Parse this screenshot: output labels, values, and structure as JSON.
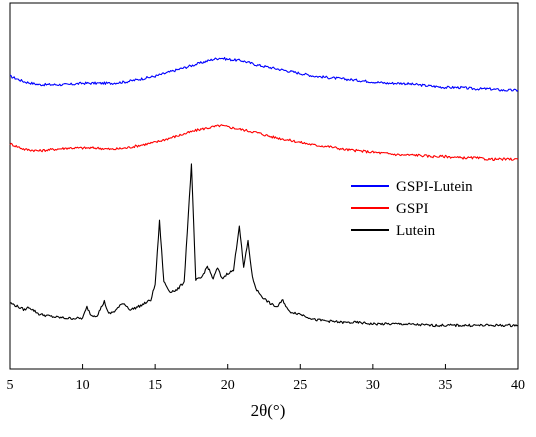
{
  "chart_data": {
    "type": "line",
    "title": "",
    "xlabel": "2θ(°)",
    "ylabel": "",
    "xlim": [
      5,
      40
    ],
    "xticks": [
      "5",
      "10",
      "15",
      "20",
      "25",
      "30",
      "35",
      "40"
    ],
    "y_ticks_shown": false,
    "grid": false,
    "legend_position": "center-right",
    "series": [
      {
        "name": "GSPI-Lutein",
        "color": "#0000ff",
        "x": [
          5,
          6,
          7,
          8,
          9,
          10,
          11,
          12,
          13,
          14,
          15,
          16,
          17,
          18,
          19,
          19.5,
          20,
          21,
          22,
          23,
          24,
          25,
          26,
          27,
          28,
          29,
          30,
          31,
          32,
          33,
          34,
          35,
          36,
          37,
          38,
          39,
          40
        ],
        "y": [
          2.08,
          2.04,
          2.02,
          2.02,
          2.02,
          2.03,
          2.03,
          2.03,
          2.04,
          2.06,
          2.08,
          2.11,
          2.14,
          2.17,
          2.2,
          2.21,
          2.2,
          2.19,
          2.16,
          2.14,
          2.12,
          2.1,
          2.08,
          2.07,
          2.06,
          2.05,
          2.04,
          2.03,
          2.03,
          2.02,
          2.01,
          2.0,
          2.0,
          1.99,
          1.99,
          1.98,
          1.98
        ]
      },
      {
        "name": "GSPI",
        "color": "#ff0000",
        "x": [
          5,
          6,
          7,
          8,
          9,
          10,
          11,
          12,
          13,
          14,
          15,
          16,
          17,
          18,
          19,
          19.5,
          20,
          21,
          22,
          23,
          24,
          25,
          26,
          27,
          28,
          29,
          30,
          31,
          32,
          33,
          34,
          35,
          36,
          37,
          38,
          39,
          40
        ],
        "y": [
          1.6,
          1.56,
          1.55,
          1.56,
          1.57,
          1.57,
          1.57,
          1.56,
          1.57,
          1.59,
          1.61,
          1.64,
          1.67,
          1.7,
          1.72,
          1.73,
          1.72,
          1.7,
          1.68,
          1.65,
          1.63,
          1.61,
          1.59,
          1.58,
          1.56,
          1.55,
          1.54,
          1.53,
          1.52,
          1.52,
          1.51,
          1.51,
          1.5,
          1.5,
          1.49,
          1.49,
          1.49
        ]
      },
      {
        "name": "Lutein",
        "color": "#000000",
        "x": [
          5,
          6,
          6.3,
          7,
          8,
          9,
          10,
          10.3,
          10.6,
          11,
          11.5,
          11.8,
          12.2,
          12.8,
          13.3,
          14,
          14.7,
          15.0,
          15.3,
          15.6,
          16.0,
          16.5,
          17.0,
          17.5,
          17.8,
          18.2,
          18.6,
          19.0,
          19.3,
          19.6,
          20.0,
          20.4,
          20.8,
          21.1,
          21.4,
          21.7,
          22.0,
          22.5,
          23.0,
          23.4,
          23.8,
          24.2,
          25.0,
          25.5,
          26,
          27,
          28,
          29,
          30,
          32,
          34,
          36,
          38,
          40
        ],
        "y": [
          0.47,
          0.42,
          0.44,
          0.39,
          0.37,
          0.36,
          0.36,
          0.44,
          0.38,
          0.38,
          0.48,
          0.39,
          0.41,
          0.47,
          0.42,
          0.45,
          0.49,
          0.6,
          1.05,
          0.62,
          0.55,
          0.56,
          0.62,
          1.45,
          0.63,
          0.65,
          0.73,
          0.64,
          0.72,
          0.64,
          0.68,
          0.7,
          1.02,
          0.72,
          0.91,
          0.65,
          0.56,
          0.5,
          0.46,
          0.44,
          0.49,
          0.41,
          0.39,
          0.37,
          0.35,
          0.34,
          0.33,
          0.33,
          0.32,
          0.32,
          0.31,
          0.31,
          0.31,
          0.31
        ]
      }
    ]
  }
}
